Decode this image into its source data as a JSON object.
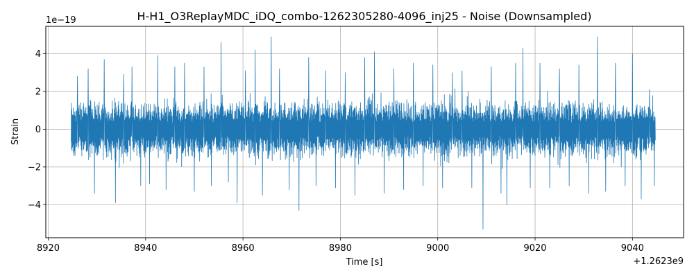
{
  "chart_data": {
    "type": "line",
    "title": "H-H1_O3ReplayMDC_iDQ_combo-1262305280-4096_inj25 - Noise (Downsampled)",
    "xlabel": "Time [s]",
    "ylabel": "Strain",
    "x_offset_label": "+1.2623e9",
    "y_scale_label": "1e−19",
    "xlim": [
      8919.5,
      9050.5
    ],
    "ylim": [
      -5.75,
      5.45
    ],
    "x_ticks": [
      8920,
      8940,
      8960,
      8980,
      9000,
      9020,
      9040
    ],
    "x_tick_labels": [
      "8920",
      "8940",
      "8960",
      "8980",
      "9000",
      "9020",
      "9040"
    ],
    "y_ticks": [
      -4,
      -2,
      0,
      2,
      4
    ],
    "y_tick_labels": [
      "−4",
      "−2",
      "0",
      "2",
      "4"
    ],
    "grid": true,
    "series": [
      {
        "color": "#1f77b4",
        "x_range": [
          8924.7,
          9044.7
        ],
        "typical_envelope": [
          -1.6,
          1.6
        ],
        "peaks": [
          {
            "x": 8926.0,
            "y": 2.8
          },
          {
            "x": 8928.2,
            "y": 3.2
          },
          {
            "x": 8929.5,
            "y": -3.4
          },
          {
            "x": 8931.5,
            "y": 3.7
          },
          {
            "x": 8933.8,
            "y": -3.9
          },
          {
            "x": 8935.5,
            "y": 2.9
          },
          {
            "x": 8937.2,
            "y": 3.3
          },
          {
            "x": 8939.0,
            "y": -3.0
          },
          {
            "x": 8940.8,
            "y": -2.9
          },
          {
            "x": 8942.5,
            "y": 3.9
          },
          {
            "x": 8944.2,
            "y": -3.2
          },
          {
            "x": 8946.0,
            "y": 3.3
          },
          {
            "x": 8948.0,
            "y": 3.5
          },
          {
            "x": 8950.0,
            "y": -3.3
          },
          {
            "x": 8952.0,
            "y": 3.3
          },
          {
            "x": 8953.5,
            "y": -3.0
          },
          {
            "x": 8955.5,
            "y": 4.6
          },
          {
            "x": 8957.0,
            "y": -2.8
          },
          {
            "x": 8958.8,
            "y": -3.9
          },
          {
            "x": 8960.5,
            "y": 3.1
          },
          {
            "x": 8962.5,
            "y": 4.2
          },
          {
            "x": 8964.0,
            "y": -3.5
          },
          {
            "x": 8965.8,
            "y": 4.9
          },
          {
            "x": 8967.5,
            "y": 3.2
          },
          {
            "x": 8969.5,
            "y": -3.2
          },
          {
            "x": 8971.5,
            "y": -4.3
          },
          {
            "x": 8973.5,
            "y": 3.8
          },
          {
            "x": 8975.0,
            "y": -3.0
          },
          {
            "x": 8977.0,
            "y": 3.1
          },
          {
            "x": 8979.0,
            "y": -3.1
          },
          {
            "x": 8981.0,
            "y": 3.0
          },
          {
            "x": 8983.0,
            "y": -3.5
          },
          {
            "x": 8985.0,
            "y": 3.8
          },
          {
            "x": 8987.0,
            "y": 4.1
          },
          {
            "x": 8989.0,
            "y": -3.4
          },
          {
            "x": 8991.0,
            "y": 3.2
          },
          {
            "x": 8993.0,
            "y": -3.2
          },
          {
            "x": 8995.0,
            "y": 3.5
          },
          {
            "x": 8997.0,
            "y": -3.0
          },
          {
            "x": 8999.0,
            "y": 3.4
          },
          {
            "x": 9001.0,
            "y": -3.1
          },
          {
            "x": 9003.0,
            "y": 3.0
          },
          {
            "x": 9005.0,
            "y": 3.1
          },
          {
            "x": 9007.0,
            "y": -3.1
          },
          {
            "x": 9009.3,
            "y": -5.3
          },
          {
            "x": 9011.0,
            "y": 3.3
          },
          {
            "x": 9013.0,
            "y": -3.4
          },
          {
            "x": 9014.2,
            "y": -4.0
          },
          {
            "x": 9016.0,
            "y": 3.5
          },
          {
            "x": 9017.5,
            "y": 4.3
          },
          {
            "x": 9019.0,
            "y": -3.1
          },
          {
            "x": 9021.0,
            "y": 3.5
          },
          {
            "x": 9023.0,
            "y": -3.1
          },
          {
            "x": 9025.0,
            "y": 3.2
          },
          {
            "x": 9027.0,
            "y": -3.0
          },
          {
            "x": 9029.0,
            "y": 3.4
          },
          {
            "x": 9031.0,
            "y": -3.4
          },
          {
            "x": 9032.8,
            "y": 4.9
          },
          {
            "x": 9034.5,
            "y": -3.3
          },
          {
            "x": 9036.5,
            "y": 3.5
          },
          {
            "x": 9038.5,
            "y": -3.0
          },
          {
            "x": 9040.0,
            "y": 4.0
          },
          {
            "x": 9041.8,
            "y": -3.7
          },
          {
            "x": 9043.5,
            "y": 2.1
          },
          {
            "x": 9044.5,
            "y": -3.0
          }
        ]
      }
    ]
  }
}
